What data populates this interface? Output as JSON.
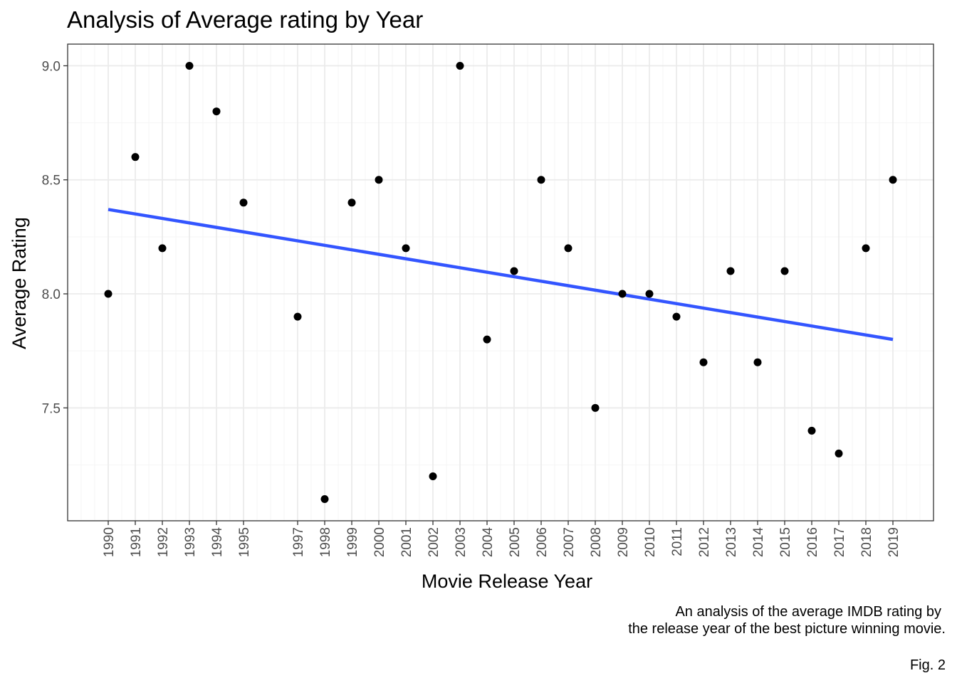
{
  "chart_data": {
    "type": "scatter",
    "title": "Analysis of Average rating by Year",
    "xlabel": "Movie Release Year",
    "ylabel": "Average Rating",
    "caption_lines": [
      "An analysis of the average IMDB rating by",
      "the release year of the best picture winning movie."
    ],
    "tag": "Fig. 2",
    "x_tick_labels": [
      "1990",
      "1991",
      "1992",
      "1993",
      "1994",
      "1995",
      "1997",
      "1998",
      "1999",
      "2000",
      "2001",
      "2002",
      "2003",
      "2004",
      "2005",
      "2006",
      "2007",
      "2008",
      "2009",
      "2010",
      "2011",
      "2012",
      "2013",
      "2014",
      "2015",
      "2016",
      "2017",
      "2018",
      "2019"
    ],
    "y_tick_labels": [
      "7.5",
      "8.0",
      "8.5",
      "9.0"
    ],
    "xlim": [
      1988.5,
      2020.5
    ],
    "ylim": [
      7.005,
      9.095
    ],
    "grid": true,
    "series": [
      {
        "x": [
          1990,
          1991,
          1992,
          1993,
          1994,
          1995,
          1997,
          1998,
          1999,
          2000,
          2001,
          2002,
          2003,
          2004,
          2005,
          2006,
          2007,
          2008,
          2009,
          2010,
          2011,
          2012,
          2013,
          2014,
          2015,
          2016,
          2017,
          2018,
          2019
        ],
        "y": [
          8.0,
          8.6,
          8.2,
          9.0,
          8.8,
          8.4,
          7.9,
          7.1,
          8.4,
          8.5,
          8.2,
          7.2,
          9.0,
          7.8,
          8.1,
          8.5,
          8.2,
          7.5,
          8.0,
          8.0,
          7.9,
          7.7,
          8.1,
          7.7,
          8.1,
          7.4,
          7.3,
          8.2,
          8.5
        ],
        "color": "#000000"
      }
    ],
    "trend_line": {
      "x": [
        1990,
        2019
      ],
      "y": [
        8.37,
        7.8
      ],
      "color": "#3355FF"
    },
    "colors": {
      "panel_border": "#333333",
      "grid_major": "#ebebeb",
      "grid_minor": "#f5f5f5",
      "tick_label": "#4d4d4d"
    }
  }
}
